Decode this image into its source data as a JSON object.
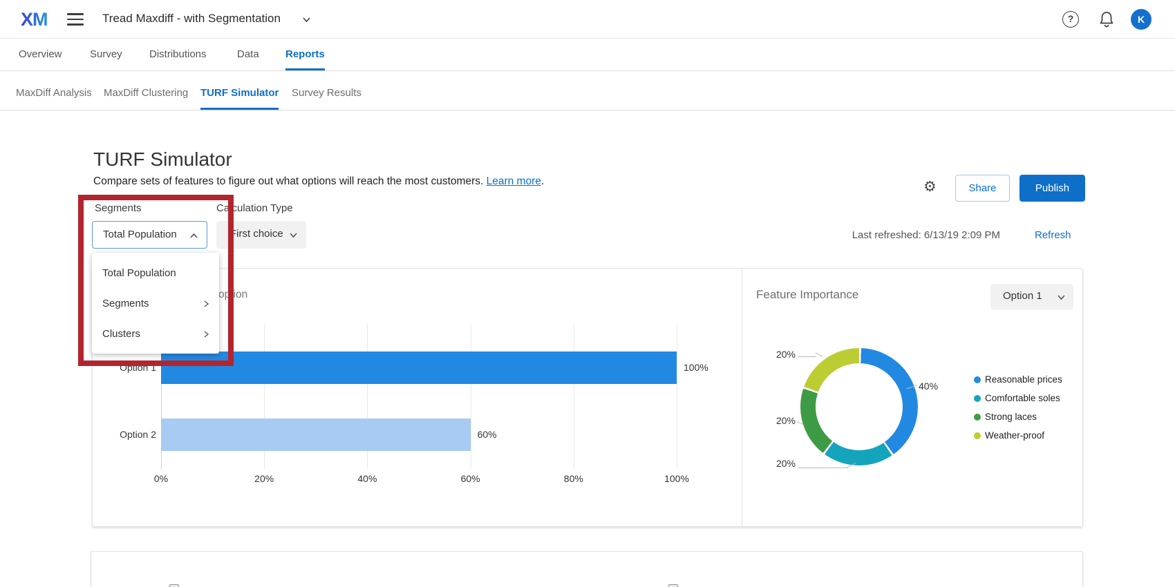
{
  "topbar": {
    "logo": "XM",
    "project_title": "Tread Maxdiff - with Segmentation",
    "help_glyph": "?",
    "avatar_initial": "K"
  },
  "nav_tabs": {
    "items": [
      "Overview",
      "Survey",
      "Distributions",
      "Data",
      "Reports"
    ],
    "active": "Reports"
  },
  "report_tabs": {
    "items": [
      "MaxDiff Analysis",
      "MaxDiff Clustering",
      "TURF Simulator",
      "Survey Results"
    ],
    "active": "TURF Simulator"
  },
  "page": {
    "title": "TURF Simulator",
    "description": "Compare sets of features to figure out what options will reach the most customers. ",
    "learn_more": "Learn more",
    "desc_suffix": "."
  },
  "toolbar": {
    "share_label": "Share",
    "publish_label": "Publish"
  },
  "refresh": {
    "last_refreshed": "Last refreshed: 6/13/19 2:09 PM",
    "refresh_label": "Refresh"
  },
  "segments_control": {
    "label": "Segments",
    "selected": "Total Population",
    "menu": [
      {
        "label": "Total Population",
        "has_submenu": false
      },
      {
        "label": "Segments",
        "has_submenu": true
      },
      {
        "label": "Clusters",
        "has_submenu": true
      }
    ]
  },
  "calculation_control": {
    "label": "Calculation Type",
    "selected": "First choice"
  },
  "annotation": {
    "shape": "rectangle",
    "color": "#b2252e"
  },
  "colors": {
    "accent_blue": "#0e6fc9",
    "bar_primary": "#2289e2",
    "bar_secondary": "#a7cbf2"
  },
  "chart_data": [
    {
      "type": "bar",
      "orientation": "horizontal",
      "title_visible_fragment": "option",
      "categories": [
        "Option 1",
        "Option 2"
      ],
      "values": [
        100,
        60
      ],
      "value_labels": [
        "100%",
        "60%"
      ],
      "bar_colors": [
        "#2289e2",
        "#a7cbf2"
      ],
      "x_ticks": [
        "0%",
        "20%",
        "40%",
        "60%",
        "80%",
        "100%"
      ],
      "x_tick_values": [
        0,
        20,
        40,
        60,
        80,
        100
      ],
      "xlim": [
        0,
        100
      ],
      "grid": true
    },
    {
      "type": "donut",
      "title": "Feature Importance",
      "selector_value": "Option 1",
      "slices": [
        {
          "label": "Reasonable prices",
          "value": 40,
          "display": "40%",
          "color": "#2289e2"
        },
        {
          "label": "Comfortable soles",
          "value": 20,
          "display": "20%",
          "color": "#14a5bd"
        },
        {
          "label": "Strong laces",
          "value": 20,
          "display": "20%",
          "color": "#3e9b45"
        },
        {
          "label": "Weather-proof",
          "value": 20,
          "display": "20%",
          "color": "#bccd33"
        }
      ],
      "legend_position": "right"
    }
  ]
}
